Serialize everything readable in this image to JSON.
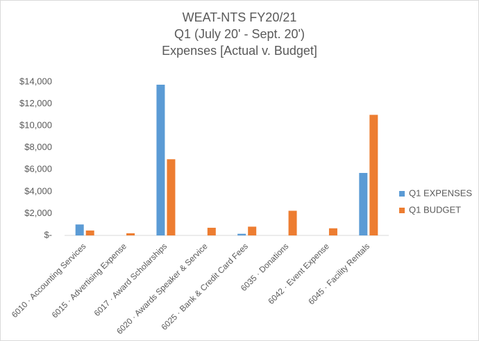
{
  "chart_data": {
    "type": "bar",
    "title": [
      "WEAT-NTS FY20/21",
      "Q1 (July 20' - Sept. 20')",
      "Expenses [Actual v. Budget]"
    ],
    "categories": [
      "6010 · Accounting Services",
      "6015 · Advertising Expense",
      "6017 · Award Scholarships",
      "6020 · Awards Speaker & Service",
      "6025 · Bank & Credit Card Fees",
      "6035 · Donations",
      "6042 · Event Expense",
      "6045 · Facility Rentals"
    ],
    "series": [
      {
        "name": "Q1 EXPENSES",
        "color": "#5b9bd5",
        "values": [
          1000,
          0,
          13750,
          0,
          150,
          0,
          0,
          5700
        ]
      },
      {
        "name": "Q1 BUDGET",
        "color": "#ed7d31",
        "values": [
          450,
          200,
          6950,
          700,
          800,
          2250,
          650,
          11000
        ]
      }
    ],
    "ylim": [
      0,
      14000
    ],
    "yticks": [
      {
        "value": 0,
        "label": "$-"
      },
      {
        "value": 2000,
        "label": "$2,000"
      },
      {
        "value": 4000,
        "label": "$4,000"
      },
      {
        "value": 6000,
        "label": "$6,000"
      },
      {
        "value": 8000,
        "label": "$8,000"
      },
      {
        "value": 10000,
        "label": "$10,000"
      },
      {
        "value": 12000,
        "label": "$12,000"
      },
      {
        "value": 14000,
        "label": "$14,000"
      }
    ],
    "grid": false,
    "legend": "right"
  }
}
